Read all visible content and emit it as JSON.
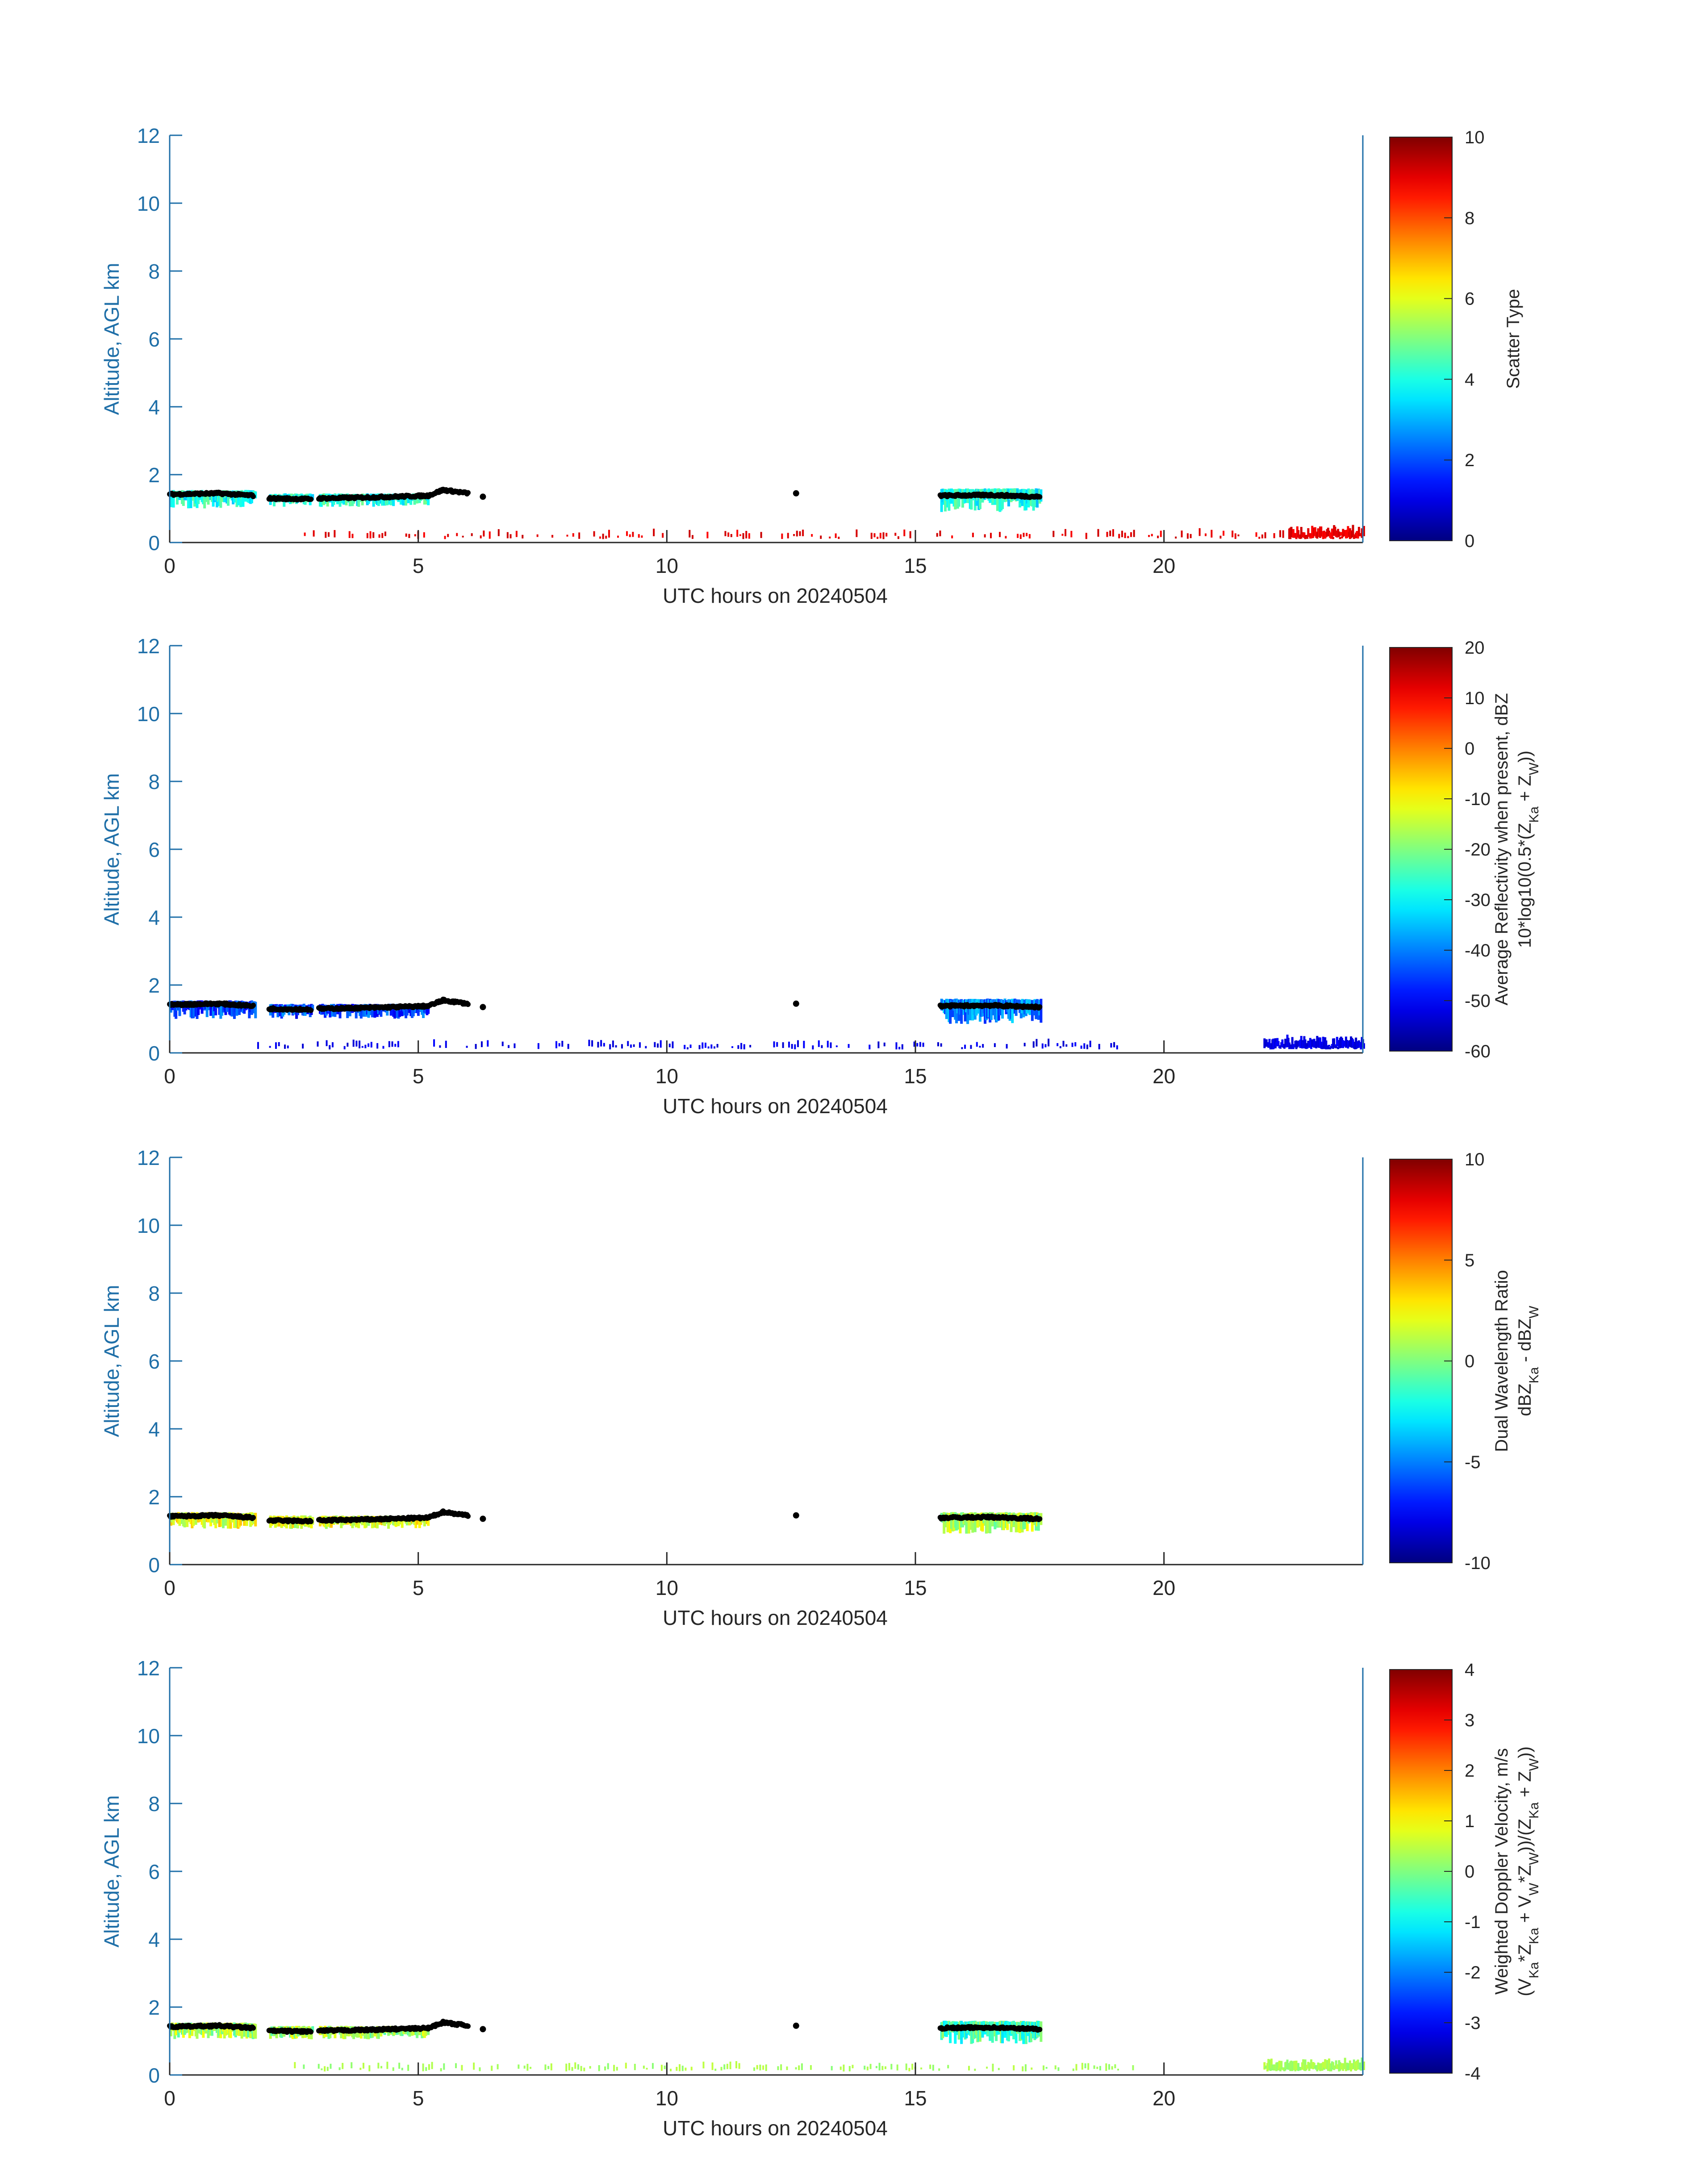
{
  "figure": {
    "colors": {
      "axis": "#1f6fa8",
      "text": "#262626",
      "base_line": "#000000"
    },
    "panels": [
      {
        "id": "scatter-type",
        "ylabel": "Altitude, AGL km",
        "xlabel": "UTC hours on 20240504",
        "colorbar": {
          "label_lines": [
            "Scatter Type"
          ],
          "range": [
            0,
            10
          ],
          "ticks": [
            "0",
            "2",
            "4",
            "6",
            "8",
            "10"
          ]
        }
      },
      {
        "id": "reflectivity",
        "ylabel": "Altitude, AGL km",
        "xlabel": "UTC hours on 20240504",
        "colorbar": {
          "label_lines": [
            "Average Reflectivity when present, dBZ",
            "10*log10(0.5*(Z_Ka + Z_W))"
          ],
          "range": [
            -60,
            20
          ],
          "ticks": [
            "-60",
            "-50",
            "-40",
            "-30",
            "-20",
            "-10",
            "0",
            "10",
            "20"
          ]
        }
      },
      {
        "id": "dwr",
        "ylabel": "Altitude, AGL km",
        "xlabel": "UTC hours on 20240504",
        "colorbar": {
          "label_lines": [
            "Dual Wavelength Ratio",
            "dBZ_Ka - dBZ_W"
          ],
          "range": [
            -10,
            10
          ],
          "ticks": [
            "-10",
            "-5",
            "0",
            "5",
            "10"
          ]
        }
      },
      {
        "id": "doppler",
        "ylabel": "Altitude, AGL km",
        "xlabel": "UTC hours on 20240504",
        "colorbar": {
          "label_lines": [
            "Weighted Doppler Velocity, m/s",
            "(V_Ka*Z_Ka + V_W*Z_W))/(Z_Ka + Z_W))"
          ],
          "range": [
            -4,
            4
          ],
          "ticks": [
            "-4",
            "-3",
            "-2",
            "-1",
            "0",
            "1",
            "2",
            "3",
            "4"
          ]
        }
      }
    ]
  },
  "chart_data": [
    {
      "type": "heatmap",
      "title": "",
      "xlabel": "UTC hours on 20240504",
      "ylabel": "Altitude, AGL km",
      "xlim": [
        0,
        24
      ],
      "ylim": [
        0,
        12
      ],
      "xticks": [
        0,
        5,
        10,
        15,
        20
      ],
      "yticks": [
        0,
        2,
        4,
        6,
        8,
        10,
        12
      ],
      "colorbar": {
        "label": "Scatter Type",
        "range": [
          0,
          10
        ],
        "colormap": "jet"
      },
      "cloud_layers": [
        {
          "x": [
            0,
            1.7
          ],
          "base_km": 1.4,
          "top_km": 1.55,
          "bottom_km": 1.0,
          "value": 4
        },
        {
          "x": [
            2.0,
            2.85
          ],
          "base_km": 1.3,
          "top_km": 1.45,
          "bottom_km": 1.05,
          "value": 4
        },
        {
          "x": [
            3.0,
            5.2
          ],
          "base_km": 1.3,
          "top_km": 1.45,
          "bottom_km": 1.05,
          "value": 4
        },
        {
          "x": [
            15.5,
            17.5
          ],
          "base_km": 1.35,
          "top_km": 1.6,
          "bottom_km": 0.9,
          "value": 4
        }
      ],
      "base_line_km": [
        [
          0,
          1.42
        ],
        [
          1,
          1.45
        ],
        [
          1.7,
          1.38
        ],
        [
          2.0,
          1.3
        ],
        [
          2.85,
          1.28
        ],
        [
          3.0,
          1.3
        ],
        [
          4.0,
          1.33
        ],
        [
          5.2,
          1.38
        ],
        [
          5.5,
          1.55
        ],
        [
          6.0,
          1.45
        ],
        [
          6.3,
          1.35
        ],
        [
          12.6,
          1.45
        ],
        [
          15.5,
          1.38
        ],
        [
          16.5,
          1.4
        ],
        [
          17.5,
          1.35
        ]
      ],
      "near_surface_echoes": {
        "x_ranges": [
          [
            2.7,
            23.0
          ],
          [
            22.5,
            24.0
          ]
        ],
        "altitude_km": [
          0.1,
          0.45
        ],
        "value": 9
      }
    },
    {
      "type": "heatmap",
      "title": "",
      "xlabel": "UTC hours on 20240504",
      "ylabel": "Altitude, AGL km",
      "xlim": [
        0,
        24
      ],
      "ylim": [
        0,
        12
      ],
      "xticks": [
        0,
        5,
        10,
        15,
        20
      ],
      "yticks": [
        0,
        2,
        4,
        6,
        8,
        10,
        12
      ],
      "colorbar": {
        "label": "Average Reflectivity when present, dBZ",
        "range": [
          -60,
          20
        ],
        "colormap": "jet"
      },
      "cloud_layers": [
        {
          "x": [
            0,
            1.7
          ],
          "base_km": 1.4,
          "top_km": 1.55,
          "bottom_km": 1.0,
          "value": -45
        },
        {
          "x": [
            2.0,
            2.85
          ],
          "base_km": 1.3,
          "top_km": 1.45,
          "bottom_km": 1.0,
          "value": -45
        },
        {
          "x": [
            3.0,
            5.2
          ],
          "base_km": 1.3,
          "top_km": 1.45,
          "bottom_km": 1.0,
          "value": -45
        },
        {
          "x": [
            15.5,
            17.5
          ],
          "base_km": 1.35,
          "top_km": 1.6,
          "bottom_km": 0.85,
          "value": -40
        }
      ],
      "near_surface_echoes": {
        "x_ranges": [
          [
            1.7,
            19.5
          ],
          [
            22.0,
            24.0
          ]
        ],
        "altitude_km": [
          0.1,
          0.45
        ],
        "value": -52
      }
    },
    {
      "type": "heatmap",
      "title": "",
      "xlabel": "UTC hours on 20240504",
      "ylabel": "Altitude, AGL km",
      "xlim": [
        0,
        24
      ],
      "ylim": [
        0,
        12
      ],
      "xticks": [
        0,
        5,
        10,
        15,
        20
      ],
      "yticks": [
        0,
        2,
        4,
        6,
        8,
        10,
        12
      ],
      "colorbar": {
        "label": "Dual Wavelength Ratio",
        "range": [
          -10,
          10
        ],
        "colormap": "jet"
      },
      "cloud_layers": [
        {
          "x": [
            0,
            1.7
          ],
          "base_km": 1.4,
          "top_km": 1.55,
          "bottom_km": 1.05,
          "value": 2
        },
        {
          "x": [
            2.0,
            2.85
          ],
          "base_km": 1.3,
          "top_km": 1.45,
          "bottom_km": 1.05,
          "value": 2
        },
        {
          "x": [
            3.0,
            5.2
          ],
          "base_km": 1.3,
          "top_km": 1.45,
          "bottom_km": 1.05,
          "value": 2
        },
        {
          "x": [
            15.5,
            17.5
          ],
          "base_km": 1.35,
          "top_km": 1.55,
          "bottom_km": 0.9,
          "value": 1
        }
      ]
    },
    {
      "type": "heatmap",
      "title": "",
      "xlabel": "UTC hours on 20240504",
      "ylabel": "Altitude, AGL km",
      "xlim": [
        0,
        24
      ],
      "ylim": [
        0,
        12
      ],
      "xticks": [
        0,
        5,
        10,
        15,
        20
      ],
      "yticks": [
        0,
        2,
        4,
        6,
        8,
        10,
        12
      ],
      "colorbar": {
        "label": "Weighted Doppler Velocity, m/s",
        "range": [
          -4,
          4
        ],
        "colormap": "jet"
      },
      "cloud_layers": [
        {
          "x": [
            0,
            1.7
          ],
          "base_km": 1.4,
          "top_km": 1.55,
          "bottom_km": 1.05,
          "value": 0.3
        },
        {
          "x": [
            2.0,
            2.85
          ],
          "base_km": 1.3,
          "top_km": 1.45,
          "bottom_km": 1.05,
          "value": 0.3
        },
        {
          "x": [
            3.0,
            5.2
          ],
          "base_km": 1.3,
          "top_km": 1.45,
          "bottom_km": 1.05,
          "value": 0.3
        },
        {
          "x": [
            15.5,
            17.5
          ],
          "base_km": 1.35,
          "top_km": 1.6,
          "bottom_km": 0.9,
          "value": -0.5
        }
      ],
      "near_surface_echoes": {
        "x_ranges": [
          [
            2.5,
            19.5
          ],
          [
            22.0,
            24.0
          ]
        ],
        "altitude_km": [
          0.1,
          0.45
        ],
        "value": 0.3
      }
    }
  ]
}
